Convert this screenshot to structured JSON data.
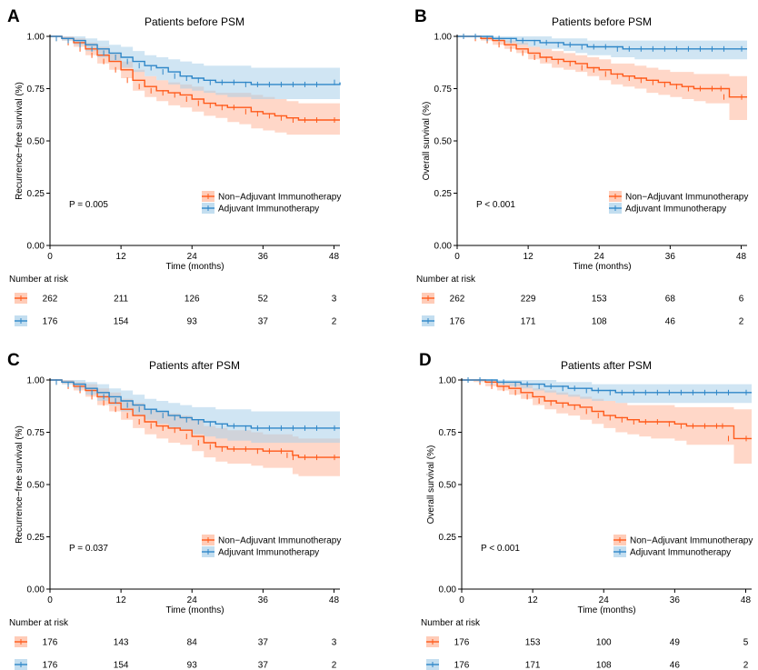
{
  "colors": {
    "non_adjuvant": "#ff5a1a",
    "adjuvant": "#2f87c8",
    "non_adjuvant_band": "#ffb79a",
    "adjuvant_band": "#a9d0ea"
  },
  "risk_table_label": "Number at risk",
  "chart_data": [
    {
      "panel": "A",
      "type": "line",
      "title": "Patients before PSM",
      "xlabel": "Time (months)",
      "ylabel": "Recurrence−free survival (%)",
      "xlim": [
        0,
        49
      ],
      "ylim": [
        0,
        1
      ],
      "xticks": [
        "0",
        "12",
        "24",
        "36",
        "48"
      ],
      "yticks": [
        "0.00",
        "0.25",
        "0.50",
        "0.75",
        "1.00"
      ],
      "pvalue": "P = 0.005",
      "legend": [
        "Non−Adjuvant Immunotherapy",
        "Adjuvant Immunotherapy"
      ],
      "legend_position": "bottom-right",
      "series": [
        {
          "name": "Non−Adjuvant Immunotherapy",
          "x": [
            0,
            2,
            4,
            6,
            8,
            10,
            12,
            14,
            16,
            18,
            20,
            22,
            24,
            26,
            28,
            30,
            32,
            34,
            36,
            38,
            40,
            42,
            44,
            46,
            49
          ],
          "y": [
            1.0,
            0.99,
            0.97,
            0.94,
            0.91,
            0.88,
            0.84,
            0.79,
            0.76,
            0.74,
            0.73,
            0.72,
            0.7,
            0.68,
            0.67,
            0.66,
            0.66,
            0.64,
            0.63,
            0.62,
            0.61,
            0.6,
            0.6,
            0.6,
            0.6
          ],
          "lower": [
            1.0,
            0.98,
            0.95,
            0.91,
            0.87,
            0.84,
            0.8,
            0.74,
            0.71,
            0.69,
            0.67,
            0.66,
            0.64,
            0.62,
            0.61,
            0.59,
            0.58,
            0.56,
            0.55,
            0.54,
            0.53,
            0.53,
            0.53,
            0.53,
            0.53
          ],
          "upper": [
            1.0,
            1.0,
            0.99,
            0.97,
            0.95,
            0.92,
            0.88,
            0.84,
            0.81,
            0.79,
            0.78,
            0.77,
            0.76,
            0.74,
            0.73,
            0.73,
            0.73,
            0.72,
            0.71,
            0.7,
            0.69,
            0.68,
            0.68,
            0.68,
            0.68
          ]
        },
        {
          "name": "Adjuvant Immunotherapy",
          "x": [
            0,
            2,
            4,
            6,
            8,
            10,
            12,
            14,
            16,
            18,
            20,
            22,
            24,
            26,
            28,
            30,
            32,
            34,
            36,
            38,
            40,
            42,
            44,
            46,
            49
          ],
          "y": [
            1.0,
            0.99,
            0.98,
            0.96,
            0.94,
            0.92,
            0.9,
            0.88,
            0.86,
            0.85,
            0.83,
            0.81,
            0.8,
            0.79,
            0.78,
            0.78,
            0.78,
            0.77,
            0.77,
            0.77,
            0.77,
            0.77,
            0.77,
            0.77,
            0.78
          ],
          "lower": [
            1.0,
            0.98,
            0.96,
            0.93,
            0.9,
            0.88,
            0.85,
            0.83,
            0.81,
            0.79,
            0.77,
            0.75,
            0.74,
            0.73,
            0.72,
            0.71,
            0.71,
            0.7,
            0.7,
            0.7,
            0.7,
            0.7,
            0.7,
            0.7,
            0.7
          ],
          "upper": [
            1.0,
            1.0,
            1.0,
            0.99,
            0.98,
            0.96,
            0.95,
            0.93,
            0.91,
            0.9,
            0.89,
            0.88,
            0.87,
            0.86,
            0.86,
            0.86,
            0.86,
            0.85,
            0.85,
            0.85,
            0.85,
            0.85,
            0.85,
            0.85,
            0.85
          ]
        }
      ],
      "risk_times": [
        "0",
        "12",
        "24",
        "36",
        "48"
      ],
      "at_risk": [
        [
          262,
          211,
          126,
          52,
          3
        ],
        [
          176,
          154,
          93,
          37,
          2
        ]
      ]
    },
    {
      "panel": "B",
      "type": "line",
      "title": "Patients before PSM",
      "xlabel": "Time (months)",
      "ylabel": "Overall survival (%)",
      "xlim": [
        0,
        49
      ],
      "ylim": [
        0,
        1
      ],
      "xticks": [
        "0",
        "12",
        "24",
        "36",
        "48"
      ],
      "yticks": [
        "0.00",
        "0.25",
        "0.50",
        "0.75",
        "1.00"
      ],
      "pvalue": "P < 0.001",
      "legend": [
        "Non−Adjuvant Immunotherapy",
        "Adjuvant Immunotherapy"
      ],
      "legend_position": "bottom-right",
      "series": [
        {
          "name": "Non−Adjuvant Immunotherapy",
          "x": [
            0,
            2,
            4,
            6,
            8,
            10,
            12,
            14,
            16,
            18,
            20,
            22,
            24,
            26,
            28,
            30,
            32,
            34,
            36,
            38,
            40,
            42,
            44,
            45.5,
            46,
            49
          ],
          "y": [
            1.0,
            1.0,
            0.99,
            0.98,
            0.96,
            0.94,
            0.92,
            0.9,
            0.89,
            0.88,
            0.87,
            0.85,
            0.84,
            0.82,
            0.81,
            0.8,
            0.79,
            0.78,
            0.77,
            0.76,
            0.75,
            0.75,
            0.75,
            0.75,
            0.71,
            0.71
          ],
          "lower": [
            1.0,
            1.0,
            0.98,
            0.96,
            0.94,
            0.92,
            0.89,
            0.87,
            0.85,
            0.84,
            0.83,
            0.81,
            0.79,
            0.77,
            0.76,
            0.75,
            0.73,
            0.72,
            0.71,
            0.7,
            0.69,
            0.68,
            0.68,
            0.68,
            0.6,
            0.6
          ],
          "upper": [
            1.0,
            1.0,
            1.0,
            0.99,
            0.98,
            0.97,
            0.95,
            0.94,
            0.93,
            0.92,
            0.91,
            0.9,
            0.89,
            0.87,
            0.87,
            0.86,
            0.85,
            0.84,
            0.83,
            0.83,
            0.82,
            0.82,
            0.82,
            0.82,
            0.81,
            0.81
          ]
        },
        {
          "name": "Adjuvant Immunotherapy",
          "x": [
            0,
            2,
            4,
            6,
            8,
            10,
            12,
            14,
            16,
            18,
            20,
            22,
            24,
            26,
            28,
            30,
            32,
            34,
            36,
            38,
            40,
            42,
            44,
            46,
            49
          ],
          "y": [
            1.0,
            1.0,
            1.0,
            0.99,
            0.99,
            0.98,
            0.98,
            0.97,
            0.97,
            0.96,
            0.96,
            0.95,
            0.95,
            0.95,
            0.94,
            0.94,
            0.94,
            0.94,
            0.94,
            0.94,
            0.94,
            0.94,
            0.94,
            0.94,
            0.94
          ],
          "lower": [
            1.0,
            1.0,
            0.99,
            0.98,
            0.97,
            0.96,
            0.95,
            0.94,
            0.94,
            0.93,
            0.92,
            0.91,
            0.91,
            0.9,
            0.9,
            0.89,
            0.89,
            0.89,
            0.89,
            0.89,
            0.89,
            0.89,
            0.89,
            0.89,
            0.89
          ],
          "upper": [
            1.0,
            1.0,
            1.0,
            1.0,
            1.0,
            1.0,
            1.0,
            1.0,
            0.99,
            0.99,
            0.99,
            0.98,
            0.98,
            0.98,
            0.98,
            0.98,
            0.98,
            0.98,
            0.98,
            0.98,
            0.98,
            0.98,
            0.98,
            0.98,
            0.98
          ]
        }
      ],
      "risk_times": [
        "0",
        "12",
        "24",
        "36",
        "48"
      ],
      "at_risk": [
        [
          262,
          229,
          153,
          68,
          6
        ],
        [
          176,
          171,
          108,
          46,
          2
        ]
      ]
    },
    {
      "panel": "C",
      "type": "line",
      "title": "Patients after PSM",
      "xlabel": "Time (months)",
      "ylabel": "Recurrence−free survival (%)",
      "xlim": [
        0,
        49
      ],
      "ylim": [
        0,
        1
      ],
      "xticks": [
        "0",
        "12",
        "24",
        "36",
        "48"
      ],
      "yticks": [
        "0.00",
        "0.25",
        "0.50",
        "0.75",
        "1.00"
      ],
      "pvalue": "P = 0.037",
      "legend": [
        "Non−Adjuvant Immunotherapy",
        "Adjuvant Immunotherapy"
      ],
      "legend_position": "bottom-right",
      "series": [
        {
          "name": "Non−Adjuvant Immunotherapy",
          "x": [
            0,
            2,
            4,
            6,
            8,
            10,
            12,
            14,
            16,
            18,
            20,
            22,
            24,
            26,
            28,
            30,
            32,
            34,
            36,
            38,
            40,
            41,
            42,
            44,
            46,
            49
          ],
          "y": [
            1.0,
            0.99,
            0.97,
            0.95,
            0.92,
            0.89,
            0.86,
            0.83,
            0.8,
            0.78,
            0.77,
            0.76,
            0.73,
            0.7,
            0.68,
            0.67,
            0.67,
            0.67,
            0.66,
            0.66,
            0.66,
            0.64,
            0.63,
            0.63,
            0.63,
            0.63
          ],
          "lower": [
            1.0,
            0.98,
            0.95,
            0.92,
            0.88,
            0.85,
            0.81,
            0.77,
            0.74,
            0.72,
            0.7,
            0.69,
            0.66,
            0.63,
            0.61,
            0.6,
            0.6,
            0.59,
            0.58,
            0.58,
            0.58,
            0.55,
            0.54,
            0.54,
            0.54,
            0.54
          ],
          "upper": [
            1.0,
            1.0,
            0.99,
            0.98,
            0.96,
            0.94,
            0.91,
            0.89,
            0.86,
            0.85,
            0.84,
            0.83,
            0.81,
            0.78,
            0.77,
            0.76,
            0.76,
            0.75,
            0.74,
            0.74,
            0.74,
            0.73,
            0.72,
            0.72,
            0.72,
            0.72
          ]
        },
        {
          "name": "Adjuvant Immunotherapy",
          "x": [
            0,
            2,
            4,
            6,
            8,
            10,
            12,
            14,
            16,
            18,
            20,
            22,
            24,
            26,
            28,
            30,
            32,
            34,
            36,
            38,
            40,
            42,
            44,
            46,
            49
          ],
          "y": [
            1.0,
            0.99,
            0.98,
            0.96,
            0.94,
            0.92,
            0.9,
            0.88,
            0.86,
            0.85,
            0.83,
            0.82,
            0.81,
            0.8,
            0.79,
            0.78,
            0.78,
            0.77,
            0.77,
            0.77,
            0.77,
            0.77,
            0.77,
            0.77,
            0.77
          ],
          "lower": [
            1.0,
            0.98,
            0.96,
            0.93,
            0.9,
            0.88,
            0.85,
            0.83,
            0.81,
            0.79,
            0.77,
            0.76,
            0.74,
            0.73,
            0.72,
            0.71,
            0.71,
            0.7,
            0.7,
            0.7,
            0.7,
            0.7,
            0.7,
            0.7,
            0.7
          ],
          "upper": [
            1.0,
            1.0,
            1.0,
            0.99,
            0.98,
            0.96,
            0.95,
            0.93,
            0.91,
            0.9,
            0.89,
            0.88,
            0.87,
            0.87,
            0.86,
            0.86,
            0.86,
            0.85,
            0.85,
            0.85,
            0.85,
            0.85,
            0.85,
            0.85,
            0.85
          ]
        }
      ],
      "risk_times": [
        "0",
        "12",
        "24",
        "36",
        "48"
      ],
      "at_risk": [
        [
          176,
          143,
          84,
          37,
          3
        ],
        [
          176,
          154,
          93,
          37,
          2
        ]
      ]
    },
    {
      "panel": "D",
      "type": "line",
      "title": "Patients after PSM",
      "xlabel": "Time (months)",
      "ylabel": "Overall survival (%)",
      "xlim": [
        0,
        49
      ],
      "ylim": [
        0,
        1
      ],
      "xticks": [
        "0",
        "12",
        "24",
        "36",
        "48"
      ],
      "yticks": [
        "0.00",
        "0.25",
        "0.50",
        "0.75",
        "1.00"
      ],
      "pvalue": "P < 0.001",
      "legend": [
        "Non−Adjuvant Immunotherapy",
        "Adjuvant Immunotherapy"
      ],
      "legend_position": "bottom-right",
      "series": [
        {
          "name": "Non−Adjuvant Immunotherapy",
          "x": [
            0,
            2,
            4,
            6,
            8,
            10,
            12,
            14,
            16,
            18,
            20,
            22,
            24,
            26,
            28,
            30,
            32,
            34,
            36,
            38,
            40,
            42,
            44,
            45,
            46,
            49
          ],
          "y": [
            1.0,
            1.0,
            0.99,
            0.97,
            0.96,
            0.94,
            0.92,
            0.9,
            0.89,
            0.88,
            0.87,
            0.85,
            0.83,
            0.82,
            0.81,
            0.8,
            0.8,
            0.8,
            0.79,
            0.78,
            0.78,
            0.78,
            0.78,
            0.78,
            0.72,
            0.72
          ],
          "lower": [
            1.0,
            0.99,
            0.97,
            0.95,
            0.93,
            0.91,
            0.88,
            0.86,
            0.84,
            0.83,
            0.81,
            0.79,
            0.77,
            0.75,
            0.74,
            0.73,
            0.72,
            0.72,
            0.71,
            0.69,
            0.69,
            0.69,
            0.69,
            0.69,
            0.6,
            0.6
          ],
          "upper": [
            1.0,
            1.0,
            1.0,
            0.99,
            0.99,
            0.98,
            0.96,
            0.95,
            0.94,
            0.93,
            0.92,
            0.91,
            0.9,
            0.89,
            0.88,
            0.88,
            0.88,
            0.88,
            0.87,
            0.87,
            0.87,
            0.87,
            0.87,
            0.87,
            0.86,
            0.86
          ]
        },
        {
          "name": "Adjuvant Immunotherapy",
          "x": [
            0,
            2,
            4,
            6,
            8,
            10,
            12,
            14,
            16,
            18,
            20,
            22,
            24,
            26,
            28,
            30,
            32,
            34,
            36,
            38,
            40,
            42,
            44,
            46,
            49
          ],
          "y": [
            1.0,
            1.0,
            1.0,
            0.99,
            0.99,
            0.98,
            0.98,
            0.97,
            0.97,
            0.96,
            0.96,
            0.95,
            0.95,
            0.94,
            0.94,
            0.94,
            0.94,
            0.94,
            0.94,
            0.94,
            0.94,
            0.94,
            0.94,
            0.94,
            0.94
          ],
          "lower": [
            1.0,
            1.0,
            0.99,
            0.98,
            0.97,
            0.96,
            0.95,
            0.94,
            0.93,
            0.92,
            0.91,
            0.9,
            0.9,
            0.89,
            0.89,
            0.89,
            0.89,
            0.89,
            0.89,
            0.89,
            0.89,
            0.89,
            0.89,
            0.89,
            0.89
          ],
          "upper": [
            1.0,
            1.0,
            1.0,
            1.0,
            1.0,
            1.0,
            1.0,
            1.0,
            0.99,
            0.99,
            0.99,
            0.98,
            0.98,
            0.98,
            0.98,
            0.98,
            0.98,
            0.98,
            0.98,
            0.98,
            0.98,
            0.98,
            0.98,
            0.98,
            0.98
          ]
        }
      ],
      "risk_times": [
        "0",
        "12",
        "24",
        "36",
        "48"
      ],
      "at_risk": [
        [
          176,
          153,
          100,
          49,
          5
        ],
        [
          176,
          171,
          108,
          46,
          2
        ]
      ]
    }
  ]
}
